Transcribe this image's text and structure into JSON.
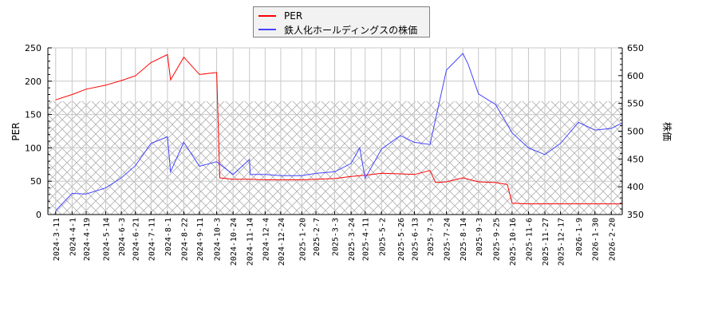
{
  "chart_data": {
    "type": "line",
    "title": "",
    "legend": {
      "position": "top-center",
      "entries": [
        {
          "label": "PER",
          "color": "#ff0000"
        },
        {
          "label": "鉄人化ホールディングスの株価",
          "color": "#4444ff"
        }
      ]
    },
    "xlabel": "",
    "ylabel_left": "PER",
    "ylabel_right": "株価",
    "ylim_left": [
      0,
      250
    ],
    "ylim_right": [
      350,
      650
    ],
    "yticks_left": [
      0,
      50,
      100,
      150,
      200,
      250
    ],
    "yticks_right": [
      350,
      400,
      450,
      500,
      550,
      600,
      650
    ],
    "grid": true,
    "hatched_band": {
      "from": 0,
      "to": 170,
      "axis": "left"
    },
    "x_tick_labels": [
      "2024-3-11",
      "2024-4-1",
      "2024-4-19",
      "2024-5-14",
      "2024-6-3",
      "2024-6-21",
      "2024-7-11",
      "2024-8-1",
      "2024-8-22",
      "2024-9-11",
      "2024-10-3",
      "2024-10-24",
      "2024-11-14",
      "2024-12-4",
      "2024-12-24",
      "2025-1-20",
      "2025-2-7",
      "2025-3-3",
      "2025-3-24",
      "2025-4-11",
      "2025-5-2",
      "2025-5-26",
      "2025-6-13",
      "2025-7-3",
      "2025-7-24",
      "2025-8-14",
      "2025-9-3",
      "2025-9-25",
      "2025-10-16",
      "2025-11-6",
      "2025-11-27",
      "2025-12-17",
      "2026-1-9",
      "2026-1-30",
      "2026-2-20"
    ],
    "series": [
      {
        "name": "PER",
        "axis": "left",
        "color": "#ff0000",
        "x": [
          "2024-3-11",
          "2024-4-1",
          "2024-4-19",
          "2024-5-14",
          "2024-6-3",
          "2024-6-21",
          "2024-7-11",
          "2024-8-1",
          "2024-8-5",
          "2024-8-22",
          "2024-9-11",
          "2024-10-3",
          "2024-10-7",
          "2024-10-24",
          "2024-11-14",
          "2024-12-4",
          "2024-12-24",
          "2025-1-20",
          "2025-2-7",
          "2025-3-3",
          "2025-3-24",
          "2025-4-11",
          "2025-5-2",
          "2025-5-26",
          "2025-6-13",
          "2025-7-3",
          "2025-7-10",
          "2025-7-24",
          "2025-8-14",
          "2025-9-3",
          "2025-9-25",
          "2025-10-10",
          "2025-10-16",
          "2025-11-6",
          "2025-11-27",
          "2025-12-17",
          "2026-1-9",
          "2026-1-30",
          "2026-2-20",
          "2026-3-6"
        ],
        "values": [
          172,
          180,
          188,
          194,
          201,
          208,
          228,
          240,
          202,
          236,
          210,
          213,
          55,
          53,
          53,
          52,
          52,
          52,
          53,
          54,
          57,
          59,
          62,
          61,
          60,
          66,
          48,
          49,
          55,
          49,
          48,
          45,
          17,
          16,
          16,
          16,
          16,
          16,
          16,
          16
        ]
      },
      {
        "name": "鉄人化ホールディングスの株価",
        "axis": "right",
        "color": "#4444ff",
        "x": [
          "2024-3-11",
          "2024-4-1",
          "2024-4-19",
          "2024-5-14",
          "2024-6-3",
          "2024-6-21",
          "2024-7-11",
          "2024-8-1",
          "2024-8-5",
          "2024-8-22",
          "2024-9-11",
          "2024-10-3",
          "2024-10-24",
          "2024-11-14",
          "2024-11-15",
          "2024-12-4",
          "2024-12-24",
          "2025-1-20",
          "2025-2-7",
          "2025-3-3",
          "2025-3-24",
          "2025-4-4",
          "2025-4-11",
          "2025-5-2",
          "2025-5-26",
          "2025-6-13",
          "2025-7-3",
          "2025-7-24",
          "2025-8-14",
          "2025-8-21",
          "2025-9-3",
          "2025-9-25",
          "2025-10-16",
          "2025-11-6",
          "2025-11-27",
          "2025-12-17",
          "2026-1-9",
          "2026-1-30",
          "2026-2-20",
          "2026-3-6"
        ],
        "values": [
          357,
          388,
          387,
          398,
          416,
          438,
          478,
          490,
          427,
          480,
          437,
          445,
          422,
          449,
          422,
          422,
          420,
          420,
          424,
          427,
          442,
          470,
          415,
          468,
          492,
          480,
          476,
          610,
          640,
          620,
          567,
          548,
          497,
          470,
          458,
          478,
          516,
          502,
          505,
          515
        ]
      }
    ]
  }
}
